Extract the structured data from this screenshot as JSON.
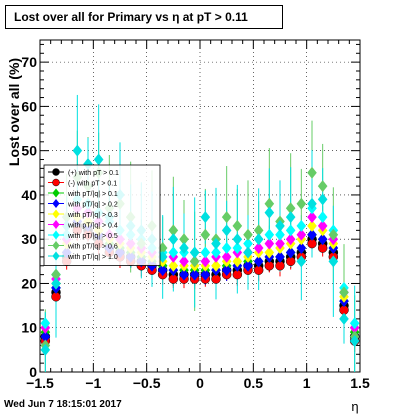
{
  "title": "Lost over all for Primary vs  η at pT > 0.11",
  "timestamp": "Wed Jun  7 18:15:01 2017",
  "chart_data": {
    "type": "scatter",
    "title": "Lost over all for Primary vs  η at pT > 0.11",
    "xlabel": "η",
    "ylabel": "Lost over all (%)",
    "xlim": [
      -1.5,
      1.5
    ],
    "ylim": [
      0,
      75
    ],
    "x_ticks": [
      -1.5,
      -1,
      -0.5,
      0,
      0.5,
      1,
      1.5
    ],
    "x_tick_labels": [
      "−1.5",
      "−1",
      "−0.5",
      "0",
      "0.5",
      "1",
      "1.5"
    ],
    "y_ticks": [
      0,
      10,
      20,
      30,
      40,
      50,
      60,
      70
    ],
    "y_tick_labels": [
      "0",
      "10",
      "20",
      "30",
      "40",
      "50",
      "60",
      "70"
    ],
    "grid": true,
    "legend_position": "top-left",
    "x": [
      -1.45,
      -1.35,
      -1.25,
      -1.15,
      -1.05,
      -0.95,
      -0.85,
      -0.75,
      -0.65,
      -0.55,
      -0.45,
      -0.35,
      -0.25,
      -0.15,
      -0.05,
      0.05,
      0.15,
      0.25,
      0.35,
      0.45,
      0.55,
      0.65,
      0.75,
      0.85,
      0.95,
      1.05,
      1.15,
      1.25,
      1.35,
      1.45
    ],
    "series": [
      {
        "name": "(+) with pT > 0.1",
        "color": "#000000",
        "marker": "circle",
        "values": [
          8,
          18,
          26,
          33,
          32,
          30,
          28,
          27,
          26,
          25,
          24,
          23,
          22,
          22,
          22,
          22,
          22,
          23,
          23,
          24,
          24,
          25,
          25,
          26,
          27,
          30,
          29,
          27,
          15,
          8
        ]
      },
      {
        "name": "(-) with pT > 0.1",
        "color": "#ff0000",
        "marker": "circle",
        "values": [
          7,
          17,
          25,
          32,
          31,
          29,
          27,
          26,
          25,
          24,
          23,
          22,
          21,
          21,
          21,
          21,
          21,
          22,
          22,
          23,
          23,
          24,
          24,
          25,
          26,
          29,
          28,
          26,
          14,
          7
        ]
      },
      {
        "name": "with pT/|q| > 0.1",
        "color": "#00cc00",
        "marker": "diamond",
        "values": [
          9,
          19,
          27,
          34,
          33,
          31,
          29,
          28,
          27,
          26,
          25,
          24,
          23,
          23,
          23,
          23,
          23,
          24,
          24,
          25,
          25,
          26,
          26,
          27,
          28,
          31,
          30,
          28,
          16,
          9
        ]
      },
      {
        "name": "with pT/|q| > 0.2",
        "color": "#0000ff",
        "marker": "diamond",
        "values": [
          8,
          19,
          27,
          34,
          33,
          31,
          28,
          27,
          26,
          25,
          24,
          23,
          23,
          22,
          22,
          22,
          23,
          23,
          24,
          24,
          25,
          26,
          26,
          27,
          28,
          31,
          30,
          28,
          16,
          8
        ]
      },
      {
        "name": "with pT/|q| > 0.3",
        "color": "#ffff00",
        "marker": "diamond",
        "values": [
          10,
          20,
          29,
          35,
          34,
          32,
          30,
          29,
          28,
          27,
          26,
          25,
          24,
          24,
          24,
          24,
          24,
          25,
          25,
          26,
          27,
          27,
          28,
          29,
          30,
          33,
          32,
          29,
          17,
          10
        ]
      },
      {
        "name": "with pT/|q| > 0.4",
        "color": "#ff00ff",
        "marker": "diamond",
        "values": [
          10,
          21,
          30,
          37,
          36,
          34,
          31,
          30,
          29,
          28,
          27,
          26,
          26,
          25,
          25,
          25,
          26,
          26,
          27,
          27,
          28,
          29,
          29,
          30,
          31,
          35,
          33,
          30,
          18,
          10
        ]
      },
      {
        "name": "with pT/|q| > 0.5",
        "color": "#00ffff",
        "marker": "diamond",
        "values": [
          11,
          22,
          31,
          39,
          38,
          36,
          34,
          32,
          31,
          30,
          28,
          27,
          27,
          27,
          27,
          27,
          27,
          28,
          28,
          29,
          30,
          31,
          31,
          32,
          33,
          37,
          35,
          32,
          19,
          11
        ]
      },
      {
        "name": "with pT/|q| > 0.6",
        "color": "#66cc66",
        "marker": "diamond",
        "values": [
          6,
          22,
          35,
          44,
          42,
          45,
          37,
          38,
          35,
          29,
          33,
          28,
          32,
          30,
          25,
          31,
          30,
          35,
          33,
          31,
          32,
          38,
          34,
          37,
          38,
          45,
          42,
          31,
          18,
          8
        ]
      },
      {
        "name": "with pT/|q| > 1.0",
        "color": "#00e0e0",
        "marker": "diamond",
        "values": [
          5,
          20,
          33,
          50,
          47,
          48,
          35,
          40,
          33,
          32,
          30,
          26,
          30,
          28,
          27,
          35,
          29,
          32,
          30,
          27,
          30,
          36,
          33,
          35,
          25,
          38,
          39,
          25,
          12,
          7
        ]
      }
    ]
  }
}
